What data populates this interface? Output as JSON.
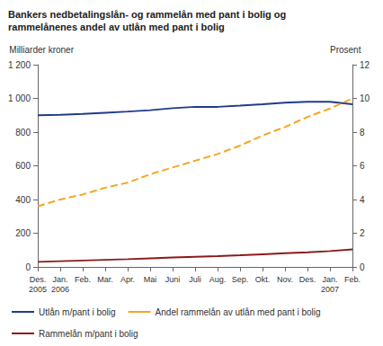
{
  "chart_data": {
    "type": "line",
    "title": "Bankers nedbetalingslån- og rammelån med pant i bolig og\nrammelånenes andel av utlån med pant i bolig",
    "y_label": "Milliarder kroner",
    "y2_label": "Prosent",
    "categories": [
      "Des.\n2005",
      "Jan.\n2006",
      "Feb.",
      "Mar.",
      "Apr.",
      "Mai",
      "Juni",
      "Juli",
      "Aug.",
      "Sep.",
      "Okt.",
      "Nov.",
      "Des.",
      "Jan.\n2007",
      "Feb."
    ],
    "series": [
      {
        "name": "Utlån m/pant i bolig",
        "color": "#1f3c88",
        "line_style": "solid",
        "values": [
          900,
          903,
          908,
          915,
          922,
          930,
          942,
          950,
          950,
          957,
          965,
          975,
          980,
          980,
          965
        ]
      },
      {
        "name": "Andel rammelån av utlån med pant i bolig",
        "color": "#f5a623",
        "line_style": "dashed",
        "axis": "y2",
        "values": [
          3.6,
          4.0,
          4.3,
          4.7,
          5.0,
          5.5,
          5.9,
          6.3,
          6.7,
          7.2,
          7.8,
          8.3,
          8.9,
          9.4,
          10.0
        ]
      },
      {
        "name": "Rammelån m/pant i bolig",
        "color": "#8b1a1a",
        "line_style": "solid",
        "values": [
          30,
          34,
          38,
          42,
          46,
          51,
          56,
          60,
          64,
          69,
          75,
          81,
          87,
          94,
          104
        ]
      }
    ],
    "ylim": [
      0,
      1200
    ],
    "yticks": [
      0,
      200,
      400,
      600,
      800,
      {
        "value": 1000,
        "label": "1 000"
      },
      {
        "value": 1200,
        "label": "1 200"
      }
    ],
    "y2lim": [
      0,
      12
    ],
    "y2ticks": [
      0,
      2,
      4,
      6,
      8,
      10,
      12
    ],
    "grid": false,
    "legend": "bottom"
  }
}
